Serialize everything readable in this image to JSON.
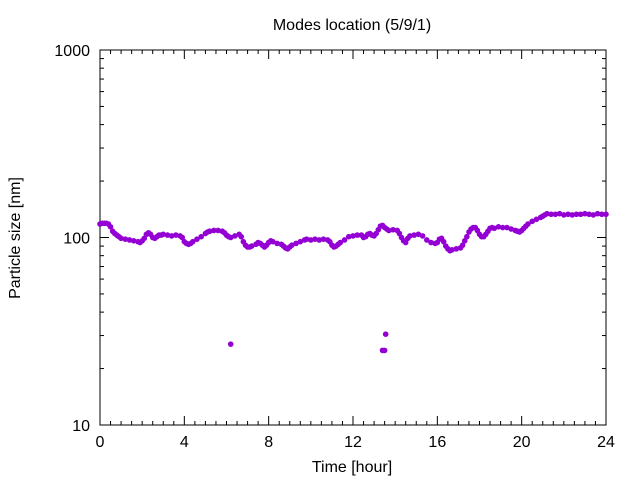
{
  "chart_data": {
    "type": "scatter",
    "title": "Modes location (5/9/1)",
    "xlabel": "Time [hour]",
    "ylabel": "Particle size [nm]",
    "xlim": [
      0,
      24
    ],
    "ylim": [
      10,
      1000
    ],
    "yscale": "log",
    "xticks": [
      "0",
      "4",
      "8",
      "12",
      "16",
      "20",
      "24"
    ],
    "yticks": [
      "10",
      "100",
      "1000"
    ],
    "grid": false,
    "legend": "none",
    "marker_color": "#9400d3",
    "series": [
      {
        "points": [
          [
            0.0,
            118
          ],
          [
            0.1,
            119
          ],
          [
            0.2,
            119
          ],
          [
            0.3,
            119
          ],
          [
            0.4,
            118
          ],
          [
            0.5,
            114
          ],
          [
            0.6,
            108
          ],
          [
            0.7,
            105
          ],
          [
            0.8,
            103
          ],
          [
            0.9,
            101
          ],
          [
            1.0,
            99
          ],
          [
            1.2,
            98
          ],
          [
            1.4,
            97
          ],
          [
            1.6,
            96
          ],
          [
            1.8,
            95
          ],
          [
            1.9,
            94
          ],
          [
            2.0,
            96
          ],
          [
            2.1,
            99
          ],
          [
            2.2,
            104
          ],
          [
            2.3,
            106
          ],
          [
            2.4,
            104
          ],
          [
            2.5,
            100
          ],
          [
            2.6,
            99
          ],
          [
            2.7,
            101
          ],
          [
            2.8,
            103
          ],
          [
            2.9,
            103
          ],
          [
            3.0,
            104
          ],
          [
            3.2,
            103
          ],
          [
            3.4,
            102
          ],
          [
            3.6,
            103
          ],
          [
            3.8,
            102
          ],
          [
            3.9,
            100
          ],
          [
            4.0,
            95
          ],
          [
            4.1,
            93
          ],
          [
            4.2,
            92
          ],
          [
            4.3,
            93
          ],
          [
            4.4,
            95
          ],
          [
            4.6,
            98
          ],
          [
            4.8,
            101
          ],
          [
            5.0,
            105
          ],
          [
            5.1,
            107
          ],
          [
            5.2,
            108
          ],
          [
            5.4,
            109
          ],
          [
            5.6,
            109
          ],
          [
            5.8,
            108
          ],
          [
            5.9,
            106
          ],
          [
            6.0,
            103
          ],
          [
            6.1,
            101
          ],
          [
            6.2,
            100
          ],
          [
            6.4,
            102
          ],
          [
            6.6,
            104
          ],
          [
            6.7,
            101
          ],
          [
            6.8,
            95
          ],
          [
            6.9,
            91
          ],
          [
            7.0,
            89
          ],
          [
            7.1,
            89
          ],
          [
            7.2,
            90
          ],
          [
            7.4,
            92
          ],
          [
            7.5,
            94
          ],
          [
            7.6,
            93
          ],
          [
            7.7,
            91
          ],
          [
            7.8,
            89
          ],
          [
            7.9,
            91
          ],
          [
            8.0,
            94
          ],
          [
            8.1,
            96
          ],
          [
            8.2,
            95
          ],
          [
            8.4,
            93
          ],
          [
            8.6,
            92
          ],
          [
            8.7,
            90
          ],
          [
            8.8,
            88
          ],
          [
            8.9,
            87
          ],
          [
            9.0,
            89
          ],
          [
            9.1,
            91
          ],
          [
            9.3,
            93
          ],
          [
            9.5,
            95
          ],
          [
            9.7,
            97
          ],
          [
            9.8,
            98
          ],
          [
            10.0,
            97
          ],
          [
            10.2,
            98
          ],
          [
            10.4,
            97
          ],
          [
            10.6,
            98
          ],
          [
            10.8,
            97
          ],
          [
            10.9,
            95
          ],
          [
            11.0,
            91
          ],
          [
            11.1,
            89
          ],
          [
            11.2,
            90
          ],
          [
            11.3,
            92
          ],
          [
            11.4,
            94
          ],
          [
            11.6,
            97
          ],
          [
            11.8,
            101
          ],
          [
            12.0,
            102
          ],
          [
            12.2,
            103
          ],
          [
            12.4,
            103
          ],
          [
            12.5,
            100
          ],
          [
            12.6,
            101
          ],
          [
            12.7,
            104
          ],
          [
            12.8,
            105
          ],
          [
            12.9,
            103
          ],
          [
            13.0,
            102
          ],
          [
            13.1,
            105
          ],
          [
            13.2,
            110
          ],
          [
            13.3,
            115
          ],
          [
            13.4,
            116
          ],
          [
            13.5,
            113
          ],
          [
            13.6,
            111
          ],
          [
            13.7,
            109
          ],
          [
            13.9,
            110
          ],
          [
            14.1,
            109
          ],
          [
            14.2,
            105
          ],
          [
            14.3,
            100
          ],
          [
            14.4,
            96
          ],
          [
            14.5,
            94
          ],
          [
            14.6,
            99
          ],
          [
            14.7,
            102
          ],
          [
            14.9,
            103
          ],
          [
            15.1,
            104
          ],
          [
            15.3,
            102
          ],
          [
            15.5,
            97
          ],
          [
            15.7,
            94
          ],
          [
            15.9,
            93
          ],
          [
            16.0,
            94
          ],
          [
            16.1,
            98
          ],
          [
            16.2,
            99
          ],
          [
            16.3,
            95
          ],
          [
            16.4,
            90
          ],
          [
            16.5,
            87
          ],
          [
            16.6,
            85
          ],
          [
            16.7,
            86
          ],
          [
            16.9,
            87
          ],
          [
            17.1,
            88
          ],
          [
            17.2,
            91
          ],
          [
            17.3,
            96
          ],
          [
            17.4,
            101
          ],
          [
            17.5,
            107
          ],
          [
            17.6,
            111
          ],
          [
            17.7,
            113
          ],
          [
            17.8,
            113
          ],
          [
            17.9,
            109
          ],
          [
            18.0,
            104
          ],
          [
            18.1,
            101
          ],
          [
            18.2,
            101
          ],
          [
            18.3,
            104
          ],
          [
            18.4,
            108
          ],
          [
            18.5,
            112
          ],
          [
            18.6,
            113
          ],
          [
            18.7,
            112
          ],
          [
            18.9,
            114
          ],
          [
            19.1,
            113
          ],
          [
            19.3,
            113
          ],
          [
            19.5,
            111
          ],
          [
            19.7,
            109
          ],
          [
            19.8,
            108
          ],
          [
            19.9,
            107
          ],
          [
            20.0,
            109
          ],
          [
            20.1,
            112
          ],
          [
            20.2,
            115
          ],
          [
            20.3,
            118
          ],
          [
            20.5,
            122
          ],
          [
            20.7,
            125
          ],
          [
            20.9,
            128
          ],
          [
            21.0,
            130
          ],
          [
            21.1,
            132
          ],
          [
            21.2,
            134
          ],
          [
            21.4,
            133
          ],
          [
            21.6,
            133
          ],
          [
            21.8,
            134
          ],
          [
            22.0,
            132
          ],
          [
            22.2,
            133
          ],
          [
            22.4,
            132
          ],
          [
            22.6,
            133
          ],
          [
            22.8,
            133
          ],
          [
            23.0,
            134
          ],
          [
            23.2,
            133
          ],
          [
            23.4,
            132
          ],
          [
            23.6,
            134
          ],
          [
            23.8,
            133
          ],
          [
            24.0,
            133
          ],
          [
            6.2,
            27
          ],
          [
            13.4,
            25
          ],
          [
            13.5,
            25
          ],
          [
            13.55,
            30.5
          ]
        ]
      }
    ]
  }
}
